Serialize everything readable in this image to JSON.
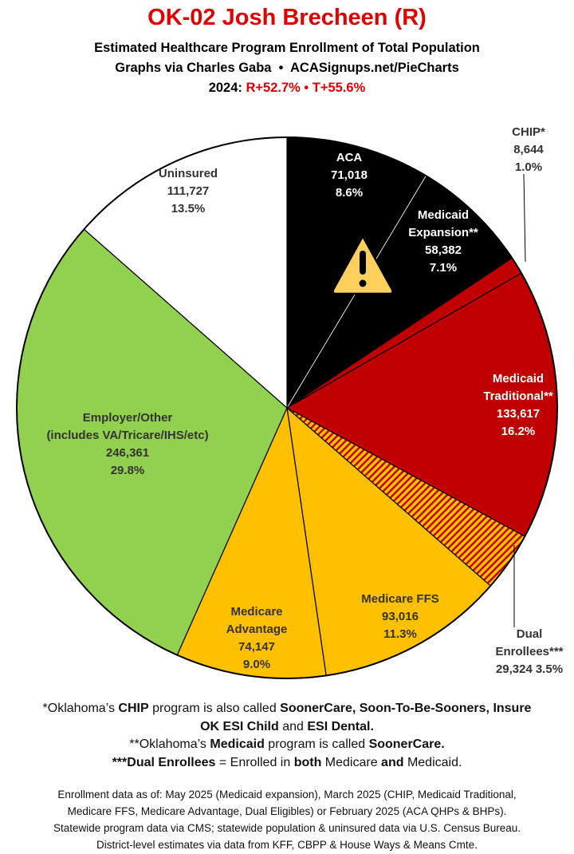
{
  "chart_data": {
    "type": "pie",
    "title": "OK-02 Josh Brecheen (R)",
    "subtitle": [
      "Estimated Healthcare Program Enrollment of Total Population",
      "Graphs via Charles Gaba  •  ACASignups.net/PieCharts"
    ],
    "election_label": "2024:",
    "election_results": "R+52.7% • T+55.6%",
    "categories": [
      "ACA",
      "Medicaid\nExpansion**",
      "CHIP*",
      "Medicaid\nTraditional**",
      "Dual Enrollees***",
      "Medicare FFS",
      "Medicare\nAdvantage",
      "Employer/Other\n(includes VA/Tricare/IHS/etc)",
      "Uninsured"
    ],
    "values": [
      71018,
      58382,
      8644,
      133617,
      29324,
      93016,
      74147,
      246361,
      111727
    ],
    "value_labels": [
      "71,018",
      "58,382",
      "8,644",
      "133,617",
      "29,324",
      "93,016",
      "74,147",
      "246,361",
      "111,727"
    ],
    "percent_labels": [
      "8.6%",
      "7.1%",
      "1.0%",
      "16.2%",
      "3.5%",
      "11.3%",
      "9.0%",
      "29.8%",
      "13.5%"
    ],
    "colors": [
      "#000000",
      "#000000",
      "#c00000",
      "#c00000",
      "#ffc000",
      "#ffc000",
      "#ffc000",
      "#92d050",
      "#ffffff"
    ],
    "hatched": [
      false,
      false,
      false,
      false,
      true,
      false,
      false,
      false,
      false
    ],
    "hatch_color": "#c00000"
  },
  "notes": [
    [
      {
        "text": "*Oklahoma’s ",
        "bold": false
      },
      {
        "text": "CHIP",
        "bold": true
      },
      {
        "text": " program is also called ",
        "bold": false
      },
      {
        "text": "SoonerCare, Soon-To-Be-Sooners, Insure OK ESI Child",
        "bold": true
      },
      {
        "text": " and ",
        "bold": false
      },
      {
        "text": "ESI Dental.",
        "bold": true
      }
    ],
    [
      {
        "text": "**Oklahoma’s ",
        "bold": false
      },
      {
        "text": "Medicaid",
        "bold": true
      },
      {
        "text": " program is called ",
        "bold": false
      },
      {
        "text": "SoonerCare.",
        "bold": true
      }
    ],
    [
      {
        "text": "***Dual Enrollees",
        "bold": true
      },
      {
        "text": " = Enrolled in ",
        "bold": false
      },
      {
        "text": "both",
        "bold": true
      },
      {
        "text": " Medicare ",
        "bold": false
      },
      {
        "text": "and",
        "bold": true
      },
      {
        "text": " Medicaid.",
        "bold": false
      }
    ]
  ],
  "source_lines": [
    "Enrollment data as of: May 2025 (Medicaid expansion), March 2025 (CHIP, Medicaid Traditional,",
    "Medicare FFS, Medicare Advantage, Dual Eligibles) or February 2025 (ACA QHPs & BHPs).",
    "Statewide program data via CMS; statewide population & uninsured data via U.S. Census Bureau.",
    "District-level estimates via data from KFF, CBPP & House Ways & Means Cmte."
  ]
}
